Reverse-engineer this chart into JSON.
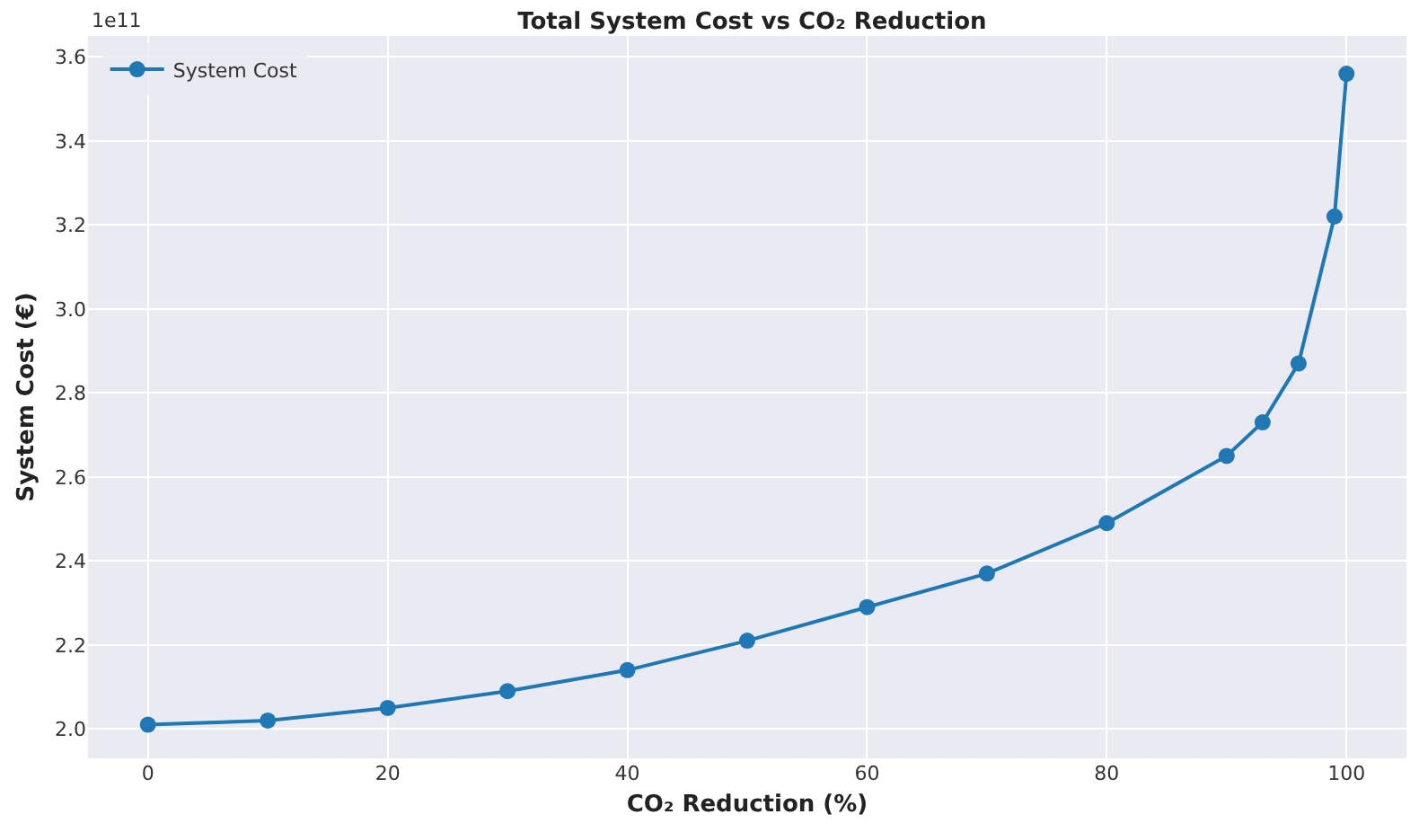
{
  "chart_data": {
    "type": "line",
    "title": "Total System Cost vs CO₂ Reduction",
    "xlabel": "CO₂ Reduction (%)",
    "ylabel": "System Cost (€)",
    "x": [
      0,
      10,
      20,
      30,
      40,
      50,
      60,
      70,
      80,
      90,
      93,
      96,
      99,
      100
    ],
    "series": [
      {
        "name": "System Cost",
        "color": "#1f77b4",
        "values": [
          2.01,
          2.02,
          2.05,
          2.09,
          2.14,
          2.21,
          2.29,
          2.37,
          2.49,
          2.65,
          2.73,
          2.87,
          3.22,
          3.56
        ]
      }
    ],
    "xlim": [
      -5,
      105
    ],
    "ylim": [
      1.93,
      3.65
    ],
    "xticks": [
      0,
      20,
      40,
      60,
      80,
      100
    ],
    "yticks": [
      {
        "value": 2.0,
        "label": "2.0"
      },
      {
        "value": 2.2,
        "label": "2.2"
      },
      {
        "value": 2.4,
        "label": "2.4"
      },
      {
        "value": 2.6,
        "label": "2.6"
      },
      {
        "value": 2.8,
        "label": "2.8"
      },
      {
        "value": 3.0,
        "label": "3.0"
      },
      {
        "value": 3.2,
        "label": "3.2"
      },
      {
        "value": 3.4,
        "label": "3.4"
      },
      {
        "value": 3.6,
        "label": "3.6"
      }
    ],
    "annotations": [
      "1e11"
    ],
    "grid": true,
    "legend": "top left",
    "marker": "circle",
    "line_style": "solid"
  }
}
